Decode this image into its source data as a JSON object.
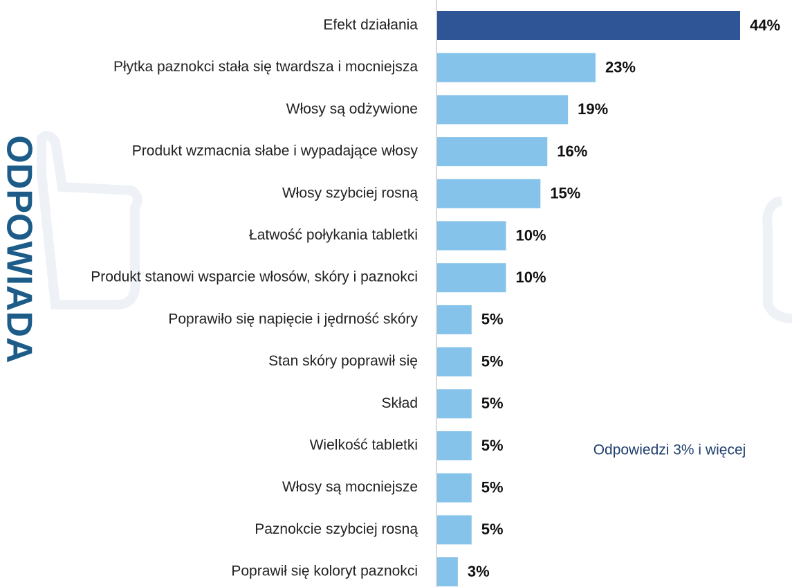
{
  "chart_data": {
    "type": "bar",
    "orientation": "horizontal",
    "side_title": "ODPOWIADA",
    "annotation": "Odpowiedzi 3% i więcej",
    "categories": [
      "Efekt działania",
      "Płytka paznokci stała się twardsza i mocniejsza",
      "Włosy są odżywione",
      "Produkt wzmacnia słabe i wypadające włosy",
      "Włosy szybciej rosną",
      "Łatwość połykania tabletki",
      "Produkt stanowi wsparcie włosów, skóry i paznokci",
      "Poprawiło się napięcie i jędrność skóry",
      "Stan skóry poprawił się",
      "Skład",
      "Wielkość tabletki",
      "Włosy są mocniejsze",
      "Paznokcie szybciej rosną",
      "Poprawił się koloryt paznokci"
    ],
    "values": [
      44,
      23,
      19,
      16,
      15,
      10,
      10,
      5,
      5,
      5,
      5,
      5,
      5,
      3
    ],
    "value_labels": [
      "44%",
      "23%",
      "19%",
      "16%",
      "15%",
      "10%",
      "10%",
      "5%",
      "5%",
      "5%",
      "5%",
      "5%",
      "5%",
      "3%"
    ],
    "colors": [
      "#2f5597",
      "#85c3eb",
      "#85c3eb",
      "#85c3eb",
      "#85c3eb",
      "#85c3eb",
      "#85c3eb",
      "#85c3eb",
      "#85c3eb",
      "#85c3eb",
      "#85c3eb",
      "#85c3eb",
      "#85c3eb",
      "#85c3eb"
    ]
  }
}
